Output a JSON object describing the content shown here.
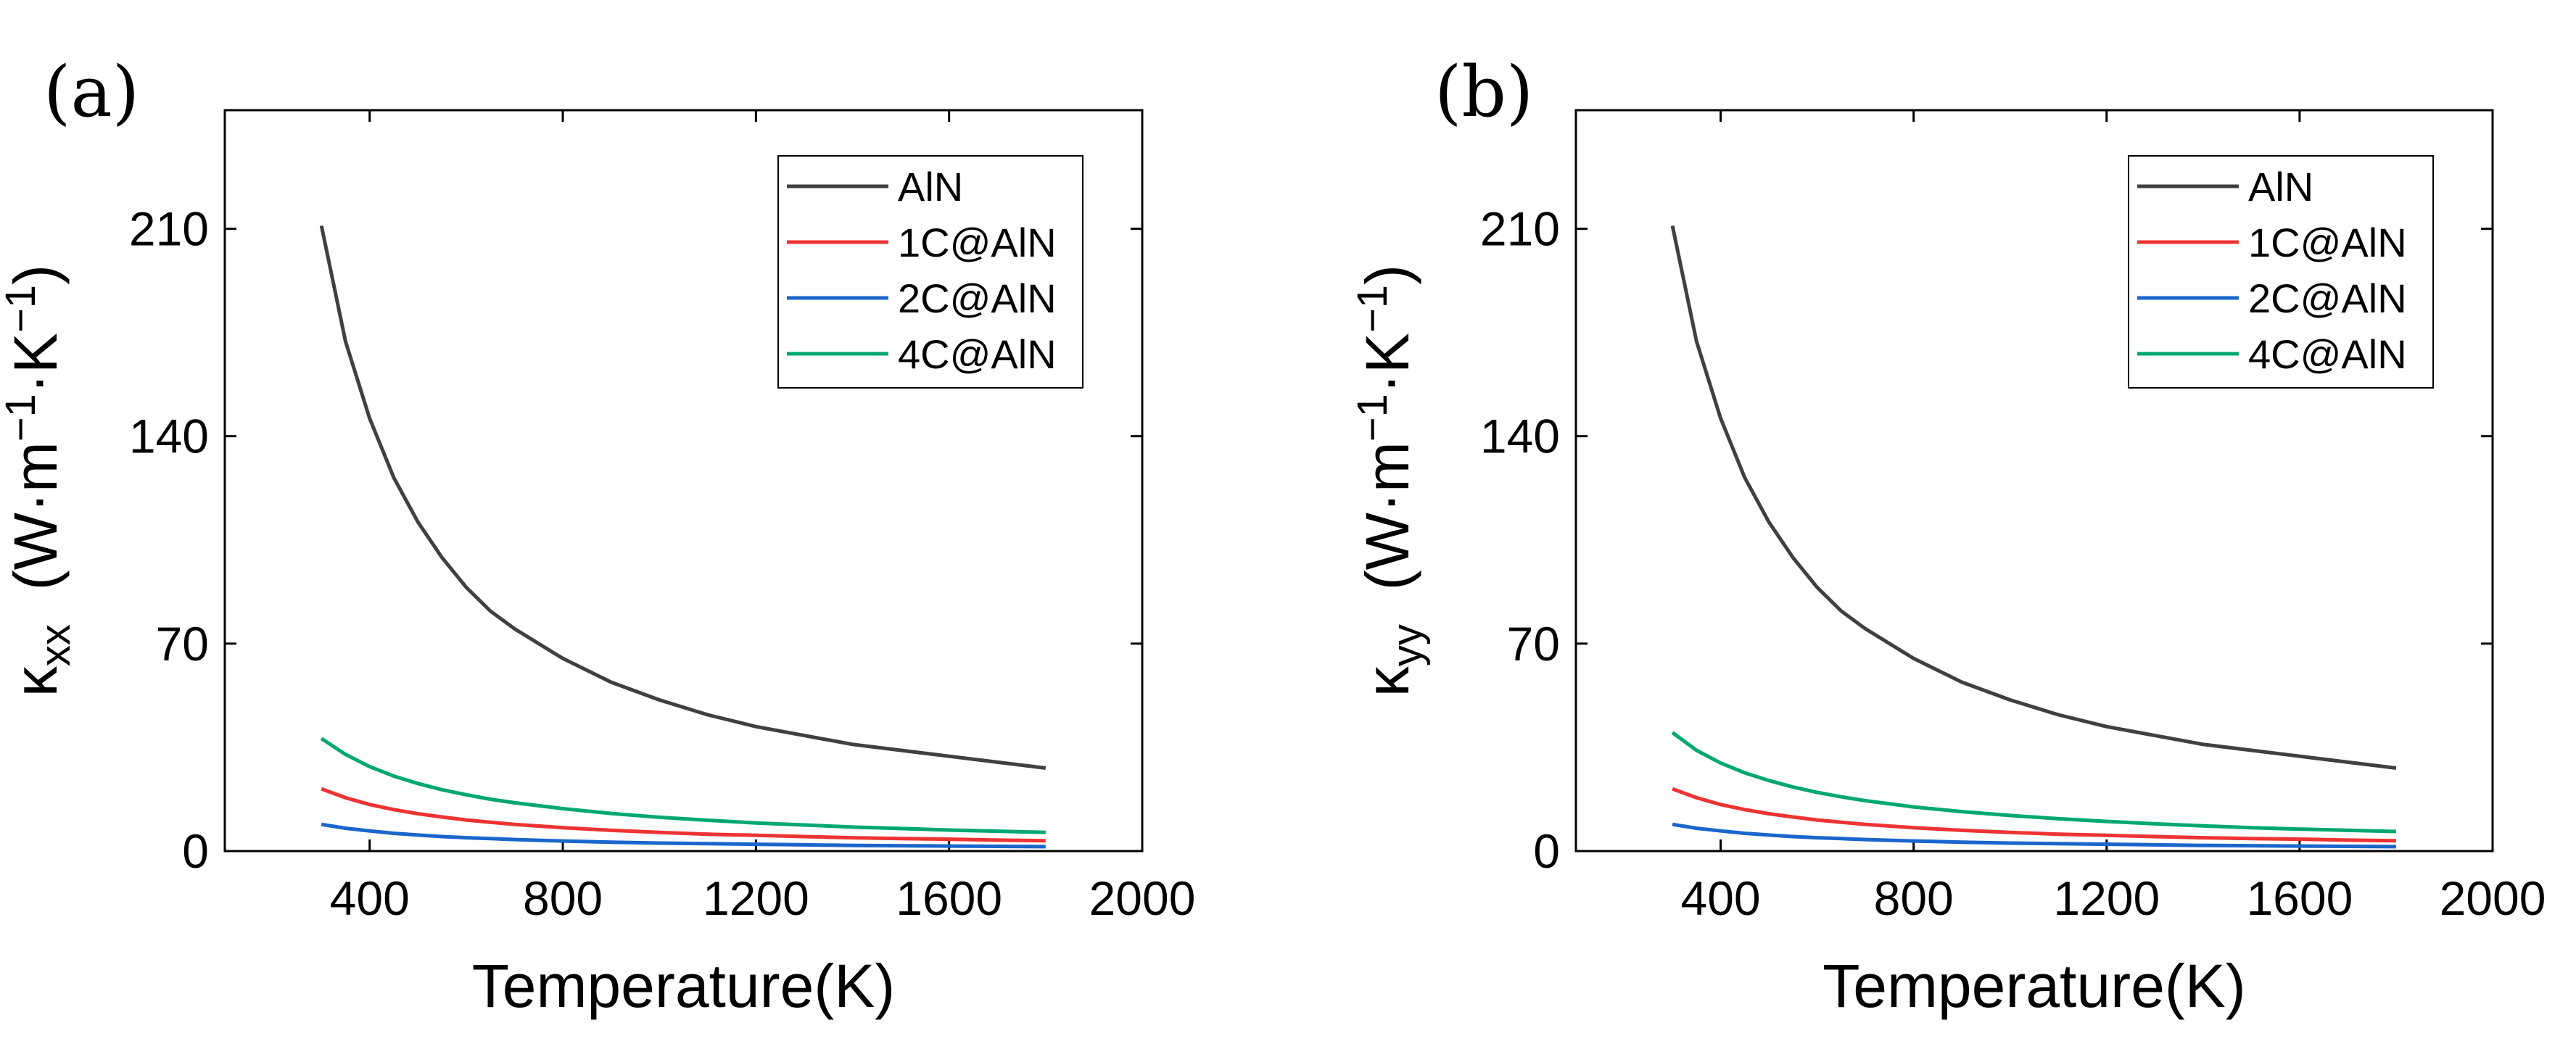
{
  "chart_data": [
    {
      "type": "line",
      "panel_label": "(a)",
      "xlabel": "Temperature(K)",
      "ylabel": {
        "symbol": "κ",
        "sub": "xx",
        "units": "(W·m",
        "sup1": "−1",
        "mid": "·K",
        "sup2": "−1",
        "close": ")"
      },
      "xlim": [
        100,
        2000
      ],
      "ylim": [
        0,
        250
      ],
      "xticks": [
        400,
        800,
        1200,
        1600,
        2000
      ],
      "yticks": [
        0,
        70,
        140,
        210
      ],
      "xtick_labels": [
        "400",
        "800",
        "1200",
        "1600",
        "2000"
      ],
      "ytick_labels": [
        "0",
        "70",
        "140",
        "210"
      ],
      "legend_position": "top-right",
      "x": [
        300,
        350,
        400,
        450,
        500,
        550,
        600,
        650,
        700,
        800,
        900,
        1000,
        1100,
        1200,
        1300,
        1400,
        1500,
        1600,
        1700,
        1800
      ],
      "series": [
        {
          "name": "AlN",
          "color": "#404040",
          "values": [
            211,
            172,
            146,
            126,
            111,
            99,
            89,
            81,
            75,
            65,
            57,
            51,
            46,
            42,
            39,
            36,
            34,
            32,
            30,
            28
          ]
        },
        {
          "name": "1C@AlN",
          "color": "#ee3333",
          "values": [
            21,
            18,
            15.7,
            14.0,
            12.6,
            11.5,
            10.5,
            9.7,
            9.0,
            7.9,
            7.0,
            6.3,
            5.7,
            5.3,
            4.9,
            4.5,
            4.2,
            4.0,
            3.7,
            3.5
          ]
        },
        {
          "name": "2C@AlN",
          "color": "#1a66cc",
          "values": [
            9,
            7.7,
            6.8,
            6.0,
            5.4,
            4.9,
            4.5,
            4.2,
            3.9,
            3.4,
            3.0,
            2.7,
            2.5,
            2.3,
            2.1,
            1.9,
            1.8,
            1.7,
            1.6,
            1.5
          ]
        },
        {
          "name": "4C@AlN",
          "color": "#00a870",
          "values": [
            38,
            32.6,
            28.5,
            25.3,
            22.8,
            20.7,
            19.0,
            17.5,
            16.3,
            14.3,
            12.7,
            11.4,
            10.4,
            9.5,
            8.8,
            8.1,
            7.6,
            7.1,
            6.7,
            6.3
          ]
        }
      ]
    },
    {
      "type": "line",
      "panel_label": "(b)",
      "xlabel": "Temperature(K)",
      "ylabel": {
        "symbol": "κ",
        "sub": "yy",
        "units": "(W·m",
        "sup1": "−1",
        "mid": "·K",
        "sup2": "−1",
        "close": ")"
      },
      "xlim": [
        100,
        2000
      ],
      "ylim": [
        0,
        250
      ],
      "xticks": [
        400,
        800,
        1200,
        1600,
        2000
      ],
      "yticks": [
        0,
        70,
        140,
        210
      ],
      "xtick_labels": [
        "400",
        "800",
        "1200",
        "1600",
        "2000"
      ],
      "ytick_labels": [
        "0",
        "70",
        "140",
        "210"
      ],
      "legend_position": "top-right",
      "x": [
        300,
        350,
        400,
        450,
        500,
        550,
        600,
        650,
        700,
        800,
        900,
        1000,
        1100,
        1200,
        1300,
        1400,
        1500,
        1600,
        1700,
        1800
      ],
      "series": [
        {
          "name": "AlN",
          "color": "#404040",
          "values": [
            211,
            172,
            146,
            126,
            111,
            99,
            89,
            81,
            75,
            65,
            57,
            51,
            46,
            42,
            39,
            36,
            34,
            32,
            30,
            28
          ]
        },
        {
          "name": "1C@AlN",
          "color": "#ee3333",
          "values": [
            21,
            18,
            15.7,
            14.0,
            12.6,
            11.5,
            10.5,
            9.7,
            9.0,
            7.9,
            7.0,
            6.3,
            5.7,
            5.3,
            4.9,
            4.5,
            4.2,
            4.0,
            3.7,
            3.5
          ]
        },
        {
          "name": "2C@AlN",
          "color": "#1a66cc",
          "values": [
            9,
            7.7,
            6.8,
            6.0,
            5.4,
            4.9,
            4.5,
            4.2,
            3.9,
            3.4,
            3.0,
            2.7,
            2.5,
            2.3,
            2.1,
            1.9,
            1.8,
            1.7,
            1.6,
            1.5
          ]
        },
        {
          "name": "4C@AlN",
          "color": "#00a870",
          "values": [
            40,
            34,
            29.7,
            26.4,
            23.8,
            21.6,
            19.8,
            18.3,
            17.0,
            14.9,
            13.3,
            12.0,
            10.9,
            10.0,
            9.2,
            8.5,
            7.9,
            7.4,
            7.0,
            6.6
          ]
        }
      ]
    }
  ]
}
